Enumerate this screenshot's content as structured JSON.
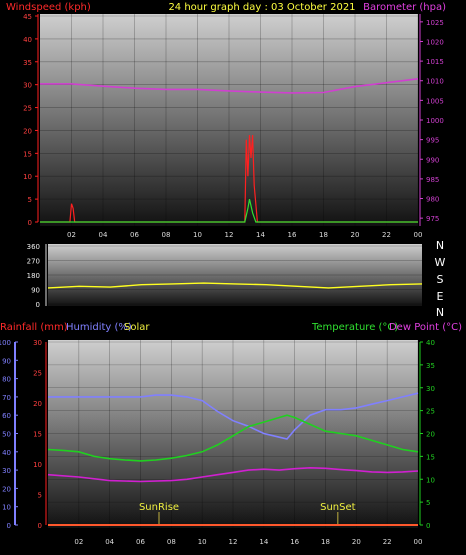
{
  "header": {
    "wind_label": "Windspeed (kph)",
    "title": "24 hour graph day : 03 October 2021",
    "baro_label": "Barometer (hpa)"
  },
  "bottom_header": {
    "rain_label": "Rainfall (mm)",
    "hum_label": "Humidity (%)",
    "solar_label": "Solar",
    "temp_label": "Temperature (°C)",
    "dew_label": "Dew Point (°C)"
  },
  "compass": [
    "N",
    "W",
    "S",
    "E",
    "N"
  ],
  "sun_labels": {
    "sunrise": "SunRise",
    "sunset": "SunSet"
  },
  "colors": {
    "wind": "#ff2020",
    "gust": "#30e030",
    "baro": "#d040d0",
    "dir": "#ffff20",
    "humidity": "#8080ff",
    "temp": "#20d020",
    "dew": "#d020d0",
    "rain": "#ff3030",
    "axis_text": "#ff4040",
    "title": "#ffff40"
  },
  "chart_data": [
    {
      "type": "line",
      "title": "24 hour graph day : 03 October 2021",
      "xlabel": "",
      "x_ticks": [
        "02",
        "04",
        "06",
        "08",
        "10",
        "12",
        "14",
        "16",
        "18",
        "20",
        "22",
        "00"
      ],
      "xlim": [
        0,
        24
      ],
      "y_left": {
        "label": "Windspeed (kph)",
        "ticks": [
          0,
          5,
          10,
          15,
          20,
          25,
          30,
          35,
          40,
          45
        ],
        "lim": [
          0,
          45
        ]
      },
      "y_right": {
        "label": "Barometer (hpa)",
        "ticks": [
          975,
          980,
          985,
          990,
          995,
          1000,
          1005,
          1010,
          1015,
          1020,
          1025
        ],
        "lim": [
          973,
          1027
        ]
      },
      "series": [
        {
          "name": "Windspeed (kph)",
          "axis": "left",
          "x": [
            0,
            1.9,
            2.0,
            2.1,
            2.2,
            13.0,
            13.1,
            13.2,
            13.3,
            13.4,
            13.5,
            13.6,
            13.7,
            13.8,
            24
          ],
          "y": [
            0,
            0,
            4,
            3,
            0,
            0,
            18,
            10,
            19,
            14,
            19,
            8,
            4,
            0,
            0
          ]
        },
        {
          "name": "Gust",
          "axis": "left",
          "x": [
            0,
            13.0,
            13.2,
            13.3,
            13.5,
            13.7,
            24
          ],
          "y": [
            0,
            0,
            3,
            5,
            2,
            0,
            0
          ]
        },
        {
          "name": "Barometer (hpa)",
          "axis": "right",
          "x": [
            0,
            2,
            4,
            6,
            8,
            10,
            12,
            14,
            16,
            18,
            20,
            22,
            24
          ],
          "y": [
            1009.2,
            1009.2,
            1008.6,
            1008.1,
            1007.8,
            1007.8,
            1007.4,
            1007.1,
            1006.9,
            1007.0,
            1008.5,
            1009.5,
            1010.5
          ]
        }
      ]
    },
    {
      "type": "line",
      "xlim": [
        0,
        24
      ],
      "y_left": {
        "ticks": [
          0,
          90,
          180,
          270,
          360
        ],
        "lim": [
          0,
          360
        ]
      },
      "series": [
        {
          "name": "Wind Direction",
          "x": [
            0,
            2,
            4,
            6,
            8,
            10,
            12,
            14,
            16,
            18,
            20,
            22,
            24
          ],
          "y": [
            100,
            110,
            105,
            120,
            125,
            130,
            125,
            120,
            110,
            100,
            110,
            120,
            125
          ]
        }
      ]
    },
    {
      "type": "line",
      "xlim": [
        0,
        24
      ],
      "x_ticks": [
        "02",
        "04",
        "06",
        "08",
        "10",
        "12",
        "14",
        "16",
        "18",
        "20",
        "22",
        "00"
      ],
      "y_left_humidity": {
        "label": "Humidity (%)",
        "ticks": [
          0,
          10,
          20,
          30,
          40,
          50,
          60,
          70,
          80,
          90,
          100
        ],
        "lim": [
          0,
          100
        ]
      },
      "y_left_rain": {
        "label": "Rainfall (mm)",
        "ticks": [
          0,
          5,
          10,
          15,
          20,
          25,
          30
        ],
        "lim": [
          0,
          30
        ]
      },
      "y_right": {
        "label": "Temperature (°C)",
        "ticks": [
          0,
          5,
          10,
          15,
          20,
          25,
          30,
          35,
          40
        ],
        "lim": [
          0,
          40
        ]
      },
      "sunrise_hour": 7.2,
      "sunset_hour": 18.8,
      "series": [
        {
          "name": "Humidity (%)",
          "axis": "humidity",
          "x": [
            0,
            2,
            4,
            6,
            7,
            8,
            9,
            10,
            11,
            12,
            13,
            14,
            15,
            15.5,
            16,
            17,
            18,
            19,
            20,
            21,
            22,
            23,
            24
          ],
          "y": [
            70,
            70,
            70,
            70,
            71,
            71,
            70,
            68,
            62,
            57,
            54,
            50,
            48,
            47,
            52,
            60,
            63,
            63,
            64,
            66,
            68,
            70,
            72
          ]
        },
        {
          "name": "Temperature (°C)",
          "axis": "temp",
          "x": [
            0,
            1,
            2,
            3,
            4,
            5,
            6,
            7,
            8,
            9,
            10,
            11,
            12,
            13,
            14,
            15,
            15.5,
            16,
            17,
            18,
            19,
            20,
            21,
            22,
            23,
            24
          ],
          "y": [
            16.5,
            16.3,
            16,
            15,
            14.5,
            14.2,
            14,
            14.2,
            14.6,
            15.2,
            16,
            17.5,
            19.5,
            21.5,
            22.5,
            23.5,
            24,
            23.5,
            22,
            20.5,
            20,
            19.5,
            18.5,
            17.5,
            16.5,
            16
          ]
        },
        {
          "name": "Dew Point (°C)",
          "axis": "temp",
          "x": [
            0,
            2,
            4,
            6,
            8,
            9,
            10,
            11,
            12,
            13,
            14,
            15,
            16,
            17,
            18,
            19,
            20,
            21,
            22,
            23,
            24
          ],
          "y": [
            11,
            10.5,
            9.7,
            9.5,
            9.7,
            10,
            10.5,
            11,
            11.5,
            12,
            12.2,
            12,
            12.3,
            12.5,
            12.4,
            12.1,
            11.9,
            11.6,
            11.5,
            11.6,
            11.8
          ]
        },
        {
          "name": "Rainfall (mm)",
          "axis": "rain",
          "x": [
            0,
            24
          ],
          "y": [
            0,
            0
          ]
        }
      ]
    }
  ]
}
